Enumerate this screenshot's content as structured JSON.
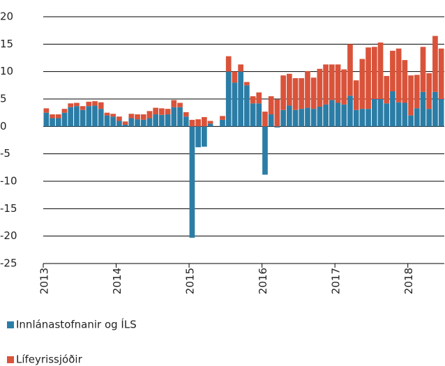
{
  "chart_data": {
    "type": "bar",
    "stacked": true,
    "categories": [
      "2013",
      null,
      null,
      null,
      null,
      null,
      null,
      null,
      null,
      null,
      null,
      null,
      "2014",
      null,
      null,
      null,
      null,
      null,
      null,
      null,
      null,
      null,
      null,
      null,
      "2015",
      null,
      null,
      null,
      null,
      null,
      null,
      null,
      null,
      null,
      null,
      null,
      "2016",
      null,
      null,
      null,
      null,
      null,
      null,
      null,
      null,
      null,
      null,
      null,
      "2017",
      null,
      null,
      null,
      null,
      null,
      null,
      null,
      null,
      null,
      null,
      null,
      "2018",
      null,
      null,
      null,
      null,
      null
    ],
    "series": [
      {
        "name": "Innlánastofnanir og ÍLS",
        "color": "#2b7da6",
        "values": [
          2.5,
          1.5,
          1.5,
          2.5,
          3.5,
          3.7,
          3.0,
          3.7,
          3.8,
          3.2,
          2.0,
          1.8,
          1.0,
          0.3,
          1.5,
          1.3,
          1.2,
          1.5,
          2.2,
          2.1,
          2.2,
          3.5,
          3.5,
          1.8,
          -20.3,
          -3.8,
          -3.7,
          0.5,
          0,
          1.2,
          10,
          8,
          10,
          7.5,
          4.2,
          4.2,
          -8.8,
          2.2,
          -0.2,
          3.0,
          3.8,
          3.0,
          3.2,
          3.4,
          3.2,
          3.6,
          4.0,
          4.8,
          4.3,
          4.0,
          5.6,
          3.0,
          3.2,
          3.2,
          5.0,
          5.0,
          4.2,
          6.4,
          4.4,
          4.3,
          2.0,
          3.3,
          6.3,
          3.2,
          6.3,
          5.0
        ]
      },
      {
        "name": "Lífeyrissjóðir",
        "color": "#d9533a",
        "values": [
          0.8,
          0.7,
          0.7,
          0.7,
          0.7,
          0.6,
          0.7,
          0.8,
          0.8,
          1.2,
          0.5,
          0.5,
          0.8,
          0.6,
          0.8,
          0.9,
          1.0,
          1.3,
          1.2,
          1.2,
          1.0,
          1.3,
          0.8,
          0.8,
          1.2,
          1.3,
          1.7,
          0.5,
          0,
          0.7,
          2.8,
          2,
          1.3,
          0.6,
          1.3,
          2,
          2.7,
          3.3,
          4.9,
          6.3,
          5.8,
          5.8,
          5.6,
          6.7,
          5.7,
          6.9,
          7.3,
          6.5,
          7.0,
          6.4,
          9.4,
          5.4,
          9.1,
          11.2,
          9.5,
          10.3,
          5.0,
          7.4,
          9.8,
          7.8,
          7.3,
          6.1,
          8.2,
          6.5,
          10.2,
          9.2
        ]
      }
    ],
    "ylim": [
      -25,
      20
    ],
    "yticks": [
      -25,
      -20,
      -15,
      -10,
      -5,
      0,
      5,
      10,
      15,
      20
    ],
    "grid": true
  }
}
